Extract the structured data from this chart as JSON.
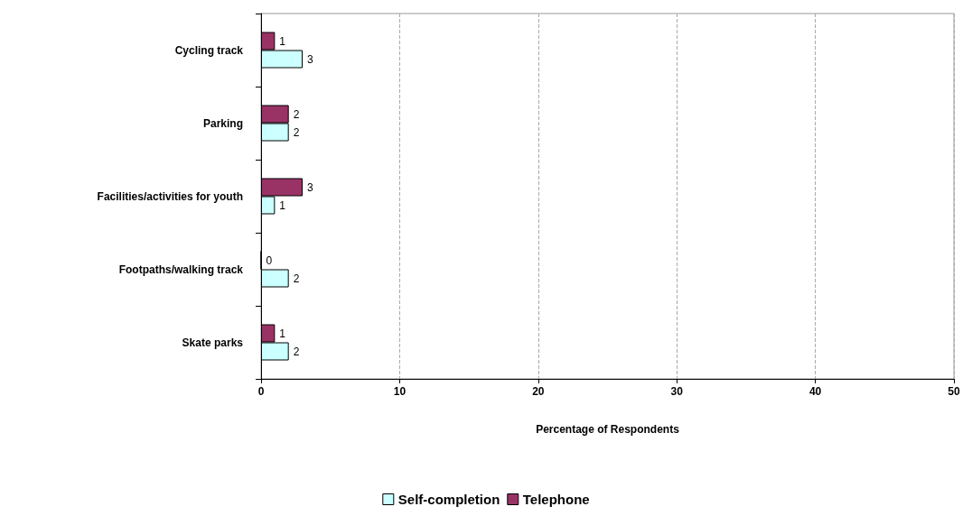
{
  "chart_data": {
    "type": "bar",
    "orientation": "horizontal",
    "categories": [
      "Cycling track",
      "Parking",
      "Facilities/activities for youth",
      "Footpaths/walking track",
      "Skate parks"
    ],
    "series": [
      {
        "name": "Self-completion",
        "color": "#ccffff",
        "values": [
          3,
          2,
          1,
          2,
          2
        ]
      },
      {
        "name": "Telephone",
        "color": "#993366",
        "values": [
          1,
          2,
          3,
          0,
          1
        ]
      }
    ],
    "xlabel": "Percentage of Respondents",
    "xlim": [
      0,
      50
    ],
    "xticks": [
      0,
      10,
      20,
      30,
      40,
      50
    ],
    "grid": "x",
    "data_labels": true,
    "legend": "bottom"
  }
}
